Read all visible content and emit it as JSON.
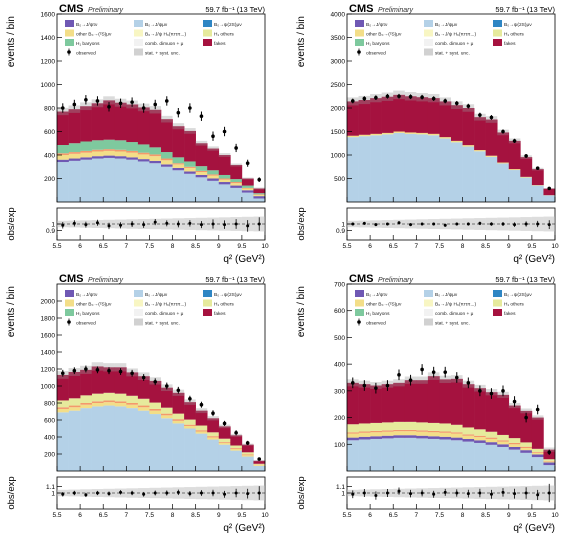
{
  "legend_colors": {
    "tau": "#6f58b3",
    "mu": "#b4d1e7",
    "dstar2s": "#2f86c4",
    "other": "#f3de88",
    "dstar2s_had": "#f8f6c3",
    "dstar2s_dstar": "#f39a6b",
    "hc_baryons": "#7ec99e",
    "comb": "#f2f2f2",
    "hb_others": "#e6ea9c",
    "fakes": "#a5123f",
    "stat_syst": "#bdbdbd"
  },
  "chart_data": [
    {
      "type": "bar",
      "stacked": true,
      "cms_label": "CMS",
      "cms_sub": "Preliminary",
      "lumi": "59.7 fb⁻¹ (13 TeV)",
      "ylabel": "events / bin",
      "ratio_label": "obs/exp",
      "xlabel": "q² (GeV²)",
      "legend": [
        {
          "key": "tau",
          "text": "B₀→J/ψτν"
        },
        {
          "key": "mu",
          "text": "B₀→J/ψμν"
        },
        {
          "key": "dstar2s",
          "text": "B₀→ψ(2S)μν"
        },
        {
          "key": "other",
          "text": "other B₀→(²S)μν"
        },
        {
          "key": "dstar2s_had",
          "text": "B₀→J/ψ H₀(πππ...)"
        },
        {
          "key": "hb_others",
          "text": "H₁ others"
        },
        {
          "key": "hc_baryons",
          "text": "H₁ baryons"
        },
        {
          "key": "comb",
          "text": "comb. dimuon + μ"
        },
        {
          "key": "fakes",
          "text": "fakes"
        },
        {
          "key": "observed",
          "text": "observed"
        },
        {
          "key": "stat_syst",
          "text": "stat. + syst. unc."
        }
      ],
      "xlim": [
        5.5,
        10
      ],
      "xticks": [
        "5.5",
        "6",
        "6.5",
        "7",
        "7.5",
        "8",
        "8.5",
        "9",
        "9.5",
        "10"
      ],
      "ylim": [
        0,
        1600
      ],
      "yticks": [
        200,
        400,
        600,
        800,
        1000,
        1200,
        1400,
        1600
      ],
      "ratio_ylim": [
        0.75,
        1.25
      ],
      "ratio_yticks": [
        0.9,
        1
      ],
      "edges": [
        5.5,
        5.75,
        6,
        6.25,
        6.5,
        6.75,
        7,
        7.25,
        7.5,
        7.75,
        8,
        8.25,
        8.5,
        8.75,
        9,
        9.25,
        9.5,
        9.75,
        10
      ],
      "series": [
        {
          "key": "mu",
          "values": [
            340,
            350,
            360,
            370,
            375,
            370,
            360,
            345,
            330,
            300,
            270,
            240,
            210,
            180,
            150,
            120,
            80,
            30
          ]
        },
        {
          "key": "tau",
          "values": [
            20,
            20,
            20,
            20,
            20,
            20,
            20,
            20,
            20,
            20,
            20,
            20,
            20,
            20,
            20,
            20,
            20,
            20
          ]
        },
        {
          "key": "other",
          "values": [
            40,
            40,
            40,
            40,
            40,
            40,
            40,
            40,
            40,
            35,
            30,
            30,
            25,
            25,
            20,
            20,
            15,
            10
          ]
        },
        {
          "key": "dstar2s_dstar",
          "values": [
            15,
            15,
            15,
            15,
            15,
            15,
            15,
            15,
            15,
            15,
            10,
            10,
            10,
            10,
            10,
            10,
            5,
            5
          ]
        },
        {
          "key": "hc_baryons",
          "values": [
            70,
            75,
            80,
            80,
            80,
            80,
            75,
            70,
            60,
            55,
            50,
            45,
            40,
            35,
            30,
            25,
            20,
            10
          ]
        },
        {
          "key": "fakes",
          "values": [
            285,
            290,
            300,
            315,
            335,
            320,
            320,
            315,
            320,
            280,
            265,
            260,
            195,
            185,
            170,
            120,
            60,
            40
          ]
        }
      ],
      "observed": [
        800,
        830,
        870,
        860,
        810,
        840,
        850,
        800,
        830,
        860,
        760,
        800,
        730,
        560,
        600,
        460,
        330,
        190
      ],
      "observed_err": [
        40,
        40,
        40,
        40,
        40,
        40,
        40,
        40,
        40,
        40,
        40,
        40,
        40,
        40,
        40,
        35,
        30,
        20
      ],
      "ratio": [
        0.98,
        1.01,
        0.99,
        1.02,
        0.97,
        0.98,
        1.0,
        0.99,
        1.03,
        1.01,
        1.0,
        1.01,
        0.99,
        1.0,
        0.99,
        1.0,
        0.97,
        1.0
      ]
    },
    {
      "type": "bar",
      "stacked": true,
      "cms_label": "CMS",
      "cms_sub": "Preliminary",
      "lumi": "59.7 fb⁻¹ (13 TeV)",
      "ylabel": "events / bin",
      "ratio_label": "obs/exp",
      "xlabel": "q² (GeV²)",
      "legend": [
        {
          "key": "tau",
          "text": "B₀→J/ψτν"
        },
        {
          "key": "mu",
          "text": "B₀→J/ψμν"
        },
        {
          "key": "dstar2s",
          "text": "B₀→ψ(2S)μν"
        },
        {
          "key": "other",
          "text": "other B₀→(²S)μν"
        },
        {
          "key": "dstar2s_had",
          "text": "B₀→J/ψ H₀(πππ...)"
        },
        {
          "key": "hb_others",
          "text": "H₁ others"
        },
        {
          "key": "hc_baryons",
          "text": "H₁ baryons"
        },
        {
          "key": "comb",
          "text": "comb. dimuon + μ"
        },
        {
          "key": "fakes",
          "text": "fakes"
        },
        {
          "key": "observed",
          "text": "observed"
        },
        {
          "key": "stat_syst",
          "text": "stat. + syst. unc."
        }
      ],
      "xlim": [
        5.5,
        10
      ],
      "xticks": [
        "5.5",
        "6",
        "6.5",
        "7",
        "7.5",
        "8",
        "8.5",
        "9",
        "9.5",
        "10"
      ],
      "ylim": [
        0,
        4000
      ],
      "yticks": [
        500,
        1000,
        1500,
        2000,
        2500,
        3000,
        3500,
        4000
      ],
      "ratio_ylim": [
        0.75,
        1.25
      ],
      "ratio_yticks": [
        0.9,
        1
      ],
      "edges": [
        5.5,
        5.75,
        6,
        6.25,
        6.5,
        6.75,
        7,
        7.25,
        7.5,
        7.75,
        8,
        8.25,
        8.5,
        8.75,
        9,
        9.25,
        9.5,
        9.75,
        10
      ],
      "series": [
        {
          "key": "mu",
          "values": [
            1380,
            1400,
            1420,
            1440,
            1470,
            1450,
            1440,
            1420,
            1350,
            1270,
            1180,
            1080,
            960,
            820,
            680,
            520,
            350,
            140
          ]
        },
        {
          "key": "other",
          "values": [
            30,
            30,
            30,
            30,
            30,
            30,
            30,
            30,
            30,
            30,
            30,
            25,
            25,
            20,
            20,
            15,
            10,
            5
          ]
        },
        {
          "key": "fakes",
          "values": [
            730,
            740,
            760,
            770,
            780,
            770,
            760,
            760,
            760,
            760,
            790,
            700,
            770,
            640,
            600,
            420,
            340,
            140
          ]
        }
      ],
      "observed": [
        2150,
        2200,
        2220,
        2250,
        2250,
        2240,
        2230,
        2200,
        2150,
        2100,
        2040,
        1850,
        1800,
        1500,
        1300,
        980,
        720,
        290
      ],
      "observed_err": [
        50,
        50,
        50,
        50,
        50,
        50,
        50,
        50,
        50,
        50,
        50,
        50,
        50,
        45,
        45,
        40,
        35,
        20
      ],
      "ratio": [
        1.0,
        1.01,
        0.99,
        1.0,
        1.02,
        0.99,
        1.0,
        1.0,
        0.98,
        1.0,
        1.0,
        1.01,
        1.0,
        1.0,
        0.99,
        1.0,
        1.0,
        0.99
      ]
    },
    {
      "type": "bar",
      "stacked": true,
      "cms_label": "CMS",
      "cms_sub": "Preliminary",
      "lumi": "59.7 fb⁻¹ (13 TeV)",
      "ylabel": "events / bin",
      "ratio_label": "obs/exp",
      "xlabel": "q² (GeV²)",
      "legend": [
        {
          "key": "tau",
          "text": "B₀→J/ψτν"
        },
        {
          "key": "mu",
          "text": "B₀→J/ψμν"
        },
        {
          "key": "dstar2s",
          "text": "B₀→ψ(2S)μν"
        },
        {
          "key": "other",
          "text": "other B₀→(²S)μν"
        },
        {
          "key": "dstar2s_had",
          "text": "B₀→J/ψ H₀(πππ...)"
        },
        {
          "key": "hb_others",
          "text": "H₁ others"
        },
        {
          "key": "hc_baryons",
          "text": "H₁ baryons"
        },
        {
          "key": "comb",
          "text": "comb. dimuon + μ"
        },
        {
          "key": "fakes",
          "text": "fakes"
        },
        {
          "key": "observed",
          "text": "observed"
        },
        {
          "key": "stat_syst",
          "text": "stat. + syst. unc."
        }
      ],
      "xlim": [
        5.5,
        10
      ],
      "xticks": [
        "5.5",
        "6",
        "6.5",
        "7",
        "7.5",
        "8",
        "8.5",
        "9",
        "9.5",
        "10"
      ],
      "ylim": [
        0,
        2200
      ],
      "yticks": [
        200,
        400,
        600,
        800,
        1000,
        1200,
        1400,
        1600,
        1800,
        2000
      ],
      "ratio_ylim": [
        0.75,
        1.25
      ],
      "ratio_yticks": [
        1,
        1.1
      ],
      "edges": [
        5.5,
        5.75,
        6,
        6.25,
        6.5,
        6.75,
        7,
        7.25,
        7.5,
        7.75,
        8,
        8.25,
        8.5,
        8.75,
        9,
        9.25,
        9.5,
        9.75,
        10
      ],
      "series": [
        {
          "key": "mu",
          "values": [
            690,
            710,
            740,
            760,
            770,
            760,
            740,
            710,
            670,
            620,
            560,
            500,
            440,
            370,
            310,
            240,
            170,
            60
          ]
        },
        {
          "key": "other",
          "values": [
            40,
            40,
            40,
            40,
            40,
            40,
            40,
            40,
            40,
            35,
            30,
            30,
            25,
            25,
            20,
            20,
            15,
            10
          ]
        },
        {
          "key": "dstar2s_dstar",
          "values": [
            20,
            20,
            20,
            20,
            20,
            20,
            20,
            20,
            20,
            20,
            20,
            15,
            15,
            15,
            10,
            10,
            10,
            5
          ]
        },
        {
          "key": "hb_others",
          "values": [
            80,
            85,
            90,
            90,
            90,
            90,
            85,
            80,
            75,
            70,
            65,
            60,
            55,
            45,
            40,
            30,
            25,
            10
          ]
        },
        {
          "key": "fakes",
          "values": [
            300,
            310,
            300,
            320,
            300,
            310,
            275,
            265,
            255,
            235,
            245,
            205,
            175,
            165,
            145,
            120,
            90,
            35
          ]
        }
      ],
      "observed": [
        1150,
        1180,
        1200,
        1190,
        1180,
        1170,
        1150,
        1100,
        1050,
        1000,
        950,
        850,
        780,
        680,
        560,
        450,
        330,
        140
      ],
      "observed_err": [
        40,
        40,
        40,
        40,
        40,
        40,
        40,
        40,
        40,
        40,
        40,
        35,
        35,
        35,
        30,
        30,
        25,
        15
      ],
      "ratio": [
        0.98,
        1.0,
        0.97,
        1.0,
        0.99,
        1.01,
        1.0,
        0.98,
        1.0,
        1.0,
        1.01,
        0.99,
        1.0,
        1.0,
        0.98,
        1.0,
        0.99,
        1.0
      ]
    },
    {
      "type": "bar",
      "stacked": true,
      "cms_label": "CMS",
      "cms_sub": "Preliminary",
      "lumi": "59.7 fb⁻¹ (13 TeV)",
      "ylabel": "events / bin",
      "ratio_label": "obs/exp",
      "xlabel": "q² (GeV²)",
      "legend": [
        {
          "key": "tau",
          "text": "B₀→J/ψτν"
        },
        {
          "key": "mu",
          "text": "B₀→J/ψμν"
        },
        {
          "key": "dstar2s",
          "text": "B₀→ψ(2S)μν"
        },
        {
          "key": "other",
          "text": "other B₀→(²S)μν"
        },
        {
          "key": "dstar2s_had",
          "text": "B₀→J/ψ H₀(πππ...)"
        },
        {
          "key": "hb_others",
          "text": "H₁ others"
        },
        {
          "key": "hc_baryons",
          "text": "H₁ baryons"
        },
        {
          "key": "comb",
          "text": "comb. dimuon + μ"
        },
        {
          "key": "fakes",
          "text": "fakes"
        },
        {
          "key": "observed",
          "text": "observed"
        },
        {
          "key": "stat_syst",
          "text": "stat. + syst. unc."
        }
      ],
      "xlim": [
        5.5,
        10
      ],
      "xticks": [
        "5.5",
        "6",
        "6.5",
        "7",
        "7.5",
        "8",
        "8.5",
        "9",
        "9.5",
        "10"
      ],
      "ylim": [
        0,
        700
      ],
      "yticks": [
        100,
        200,
        300,
        400,
        500,
        600,
        700
      ],
      "ratio_ylim": [
        0.75,
        1.25
      ],
      "ratio_yticks": [
        1,
        1.1
      ],
      "edges": [
        5.5,
        5.75,
        6,
        6.25,
        6.5,
        6.75,
        7,
        7.25,
        7.5,
        7.75,
        8,
        8.25,
        8.5,
        8.75,
        9,
        9.25,
        9.5,
        9.75,
        10
      ],
      "series": [
        {
          "key": "mu",
          "values": [
            115,
            118,
            120,
            122,
            124,
            124,
            122,
            120,
            118,
            115,
            110,
            105,
            98,
            90,
            80,
            68,
            52,
            22
          ]
        },
        {
          "key": "tau",
          "values": [
            10,
            10,
            10,
            10,
            10,
            10,
            10,
            10,
            10,
            10,
            10,
            10,
            10,
            10,
            10,
            10,
            10,
            10
          ]
        },
        {
          "key": "other",
          "values": [
            15,
            15,
            15,
            15,
            15,
            15,
            15,
            15,
            15,
            15,
            12,
            12,
            12,
            10,
            10,
            8,
            6,
            4
          ]
        },
        {
          "key": "dstar2s_dstar",
          "values": [
            5,
            5,
            5,
            5,
            5,
            5,
            5,
            5,
            5,
            5,
            5,
            5,
            5,
            5,
            5,
            5,
            3,
            2
          ]
        },
        {
          "key": "hb_others",
          "values": [
            30,
            30,
            30,
            30,
            30,
            30,
            30,
            30,
            30,
            28,
            26,
            24,
            22,
            20,
            18,
            16,
            12,
            6
          ]
        },
        {
          "key": "fakes",
          "values": [
            155,
            147,
            140,
            143,
            146,
            156,
            158,
            175,
            165,
            172,
            162,
            154,
            148,
            150,
            122,
            118,
            117,
            36
          ]
        }
      ],
      "observed": [
        330,
        320,
        310,
        320,
        360,
        340,
        380,
        370,
        370,
        350,
        330,
        300,
        290,
        300,
        260,
        200,
        230,
        70
      ],
      "observed_err": [
        20,
        20,
        20,
        20,
        20,
        20,
        20,
        20,
        20,
        20,
        20,
        20,
        20,
        20,
        20,
        18,
        18,
        10
      ],
      "ratio": [
        0.98,
        1.0,
        0.96,
        1.0,
        1.03,
        0.99,
        1.0,
        0.98,
        1.01,
        1.0,
        0.99,
        1.0,
        0.98,
        1.01,
        0.99,
        1.0,
        0.97,
        1.0
      ]
    }
  ]
}
